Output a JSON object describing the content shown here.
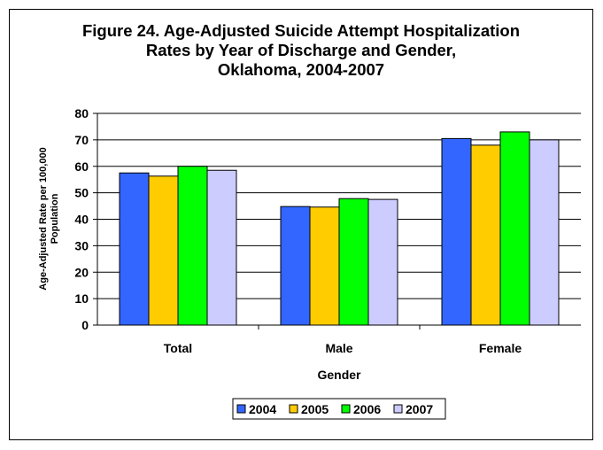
{
  "chart_data": {
    "type": "bar",
    "title_lines": [
      "Figure 24. Age-Adjusted Suicide Attempt Hospitalization",
      "Rates by Year of Discharge and Gender,",
      "Oklahoma, 2004-2007"
    ],
    "xlabel": "Gender",
    "ylabel_lines": [
      "Age-Adjusted Rate per 100,000",
      "Population"
    ],
    "categories": [
      "Total",
      "Male",
      "Female"
    ],
    "ylim": [
      0,
      80
    ],
    "yticks": [
      0,
      10,
      20,
      30,
      40,
      50,
      60,
      70,
      80
    ],
    "grid": true,
    "legend_position": "bottom",
    "series": [
      {
        "name": "2004",
        "color": "#3366FF",
        "values": [
          57.5,
          44.8,
          70.5
        ]
      },
      {
        "name": "2005",
        "color": "#FFCC00",
        "values": [
          56.3,
          44.6,
          68.0
        ]
      },
      {
        "name": "2006",
        "color": "#00FF00",
        "values": [
          60.0,
          47.8,
          73.0
        ]
      },
      {
        "name": "2007",
        "color": "#CCCCFF",
        "values": [
          58.5,
          47.5,
          70.0
        ]
      }
    ]
  }
}
